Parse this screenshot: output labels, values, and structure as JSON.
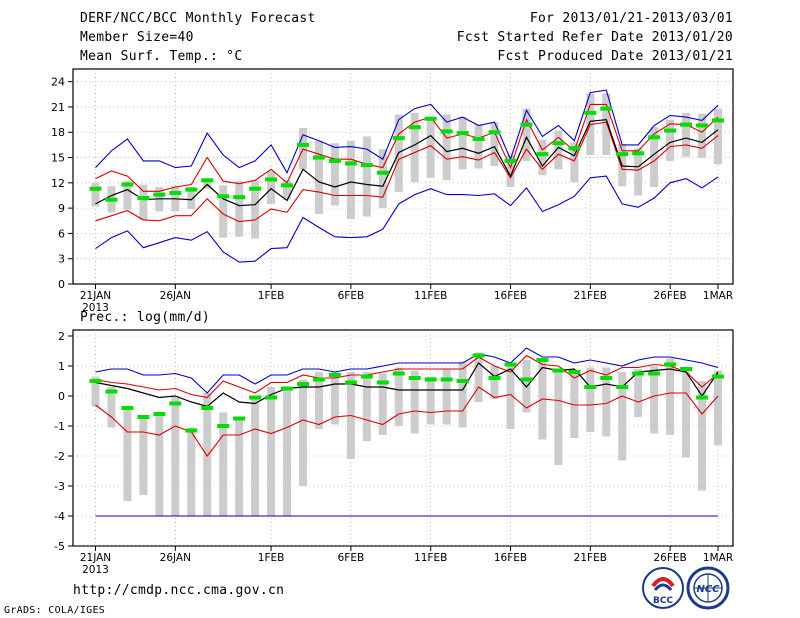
{
  "header": {
    "title": "DERF/NCC/BCC Monthly Forecast",
    "member_size": "Member Size=40",
    "variable": "Mean Surf. Temp.: °C",
    "period": "For 2013/01/21-2013/03/01",
    "fcst_started": "Fcst Started Refer Date 2013/01/20",
    "fcst_produced": "Fcst Produced Date 2013/01/21"
  },
  "footer": {
    "url": "http://cmdp.ncc.cma.gov.cn",
    "grads": "GrADS: COLA/IGES",
    "logo_bcc": "BCC",
    "logo_ncc": "NCC"
  },
  "colors": {
    "max": "#0000cc",
    "min": "#0000cc",
    "upper": "#dd0000",
    "lower": "#dd0000",
    "mean": "#000000",
    "median": "#00aa00",
    "obs": "#00dd00",
    "box": "#cccccc"
  },
  "chart_data": [
    {
      "type": "box-line",
      "title": "",
      "ylabel": "Mean Surf. Temp.: °C",
      "ylim": [
        0,
        25.5
      ],
      "yticks": [
        0,
        3,
        6,
        9,
        12,
        15,
        18,
        21,
        24
      ],
      "x": [
        1,
        2,
        3,
        4,
        5,
        6,
        7,
        8,
        9,
        10,
        11,
        12,
        13,
        14,
        15,
        16,
        17,
        18,
        19,
        20,
        21,
        22,
        23,
        24,
        25,
        26,
        27,
        28,
        29,
        30,
        31,
        32,
        33,
        34,
        35,
        36,
        37,
        38,
        39,
        40
      ],
      "xticks": [
        {
          "day": 1,
          "label": "21JAN"
        },
        {
          "day": 6,
          "label": "26JAN"
        },
        {
          "day": 12,
          "label": "1FEB"
        },
        {
          "day": 17,
          "label": "6FEB"
        },
        {
          "day": 22,
          "label": "11FEB"
        },
        {
          "day": 27,
          "label": "16FEB"
        },
        {
          "day": 32,
          "label": "21FEB"
        },
        {
          "day": 37,
          "label": "26FEB"
        },
        {
          "day": 40,
          "label": "1MAR"
        }
      ],
      "year_label": "2013",
      "series": [
        {
          "name": "max",
          "values": [
            13.8,
            15.8,
            17.2,
            14.6,
            14.6,
            13.8,
            14.0,
            17.9,
            15.3,
            13.8,
            14.6,
            16.5,
            13.2,
            17.7,
            17.0,
            16.2,
            16.3,
            16.0,
            14.8,
            19.5,
            20.8,
            21.3,
            19.2,
            19.8,
            18.8,
            19.2,
            14.8,
            20.6,
            17.5,
            18.8,
            17.0,
            22.7,
            23.0,
            16.5,
            16.5,
            18.8,
            20.0,
            19.8,
            19.4,
            21.2
          ]
        },
        {
          "name": "upper",
          "values": [
            12.5,
            13.4,
            12.8,
            11.0,
            11.0,
            11.5,
            11.8,
            15.0,
            12.2,
            11.9,
            12.3,
            13.6,
            12.0,
            16.0,
            15.4,
            14.8,
            14.8,
            14.2,
            13.8,
            17.8,
            19.2,
            19.8,
            17.3,
            17.8,
            17.3,
            18.0,
            13.8,
            19.5,
            15.9,
            17.4,
            15.8,
            21.3,
            21.3,
            15.8,
            15.8,
            17.8,
            19.0,
            18.9,
            18.0,
            19.8
          ]
        },
        {
          "name": "mean",
          "values": [
            9.5,
            10.5,
            11.2,
            10.0,
            10.1,
            10.1,
            10.0,
            11.8,
            10.1,
            9.3,
            9.4,
            11.3,
            9.9,
            13.6,
            12.1,
            11.5,
            12.1,
            11.8,
            11.6,
            15.6,
            16.5,
            17.6,
            15.7,
            16.1,
            15.5,
            16.3,
            12.8,
            17.4,
            14.0,
            16.2,
            15.2,
            19.3,
            19.5,
            14.0,
            13.9,
            15.4,
            16.8,
            17.3,
            16.8,
            18.3
          ]
        },
        {
          "name": "lower",
          "values": [
            7.5,
            8.1,
            8.7,
            7.6,
            7.5,
            8.1,
            8.1,
            10.1,
            8.3,
            7.4,
            7.6,
            8.9,
            8.5,
            11.2,
            10.9,
            10.5,
            10.5,
            10.5,
            10.3,
            14.8,
            15.6,
            16.4,
            14.8,
            15.1,
            14.7,
            15.6,
            12.6,
            16.0,
            13.6,
            15.4,
            14.6,
            18.9,
            19.2,
            13.6,
            13.5,
            14.6,
            16.3,
            16.5,
            16.1,
            17.6
          ]
        },
        {
          "name": "min",
          "values": [
            4.2,
            5.5,
            6.3,
            4.3,
            4.9,
            5.5,
            5.2,
            6.2,
            3.8,
            2.6,
            2.7,
            4.2,
            4.3,
            7.9,
            6.7,
            5.6,
            5.5,
            5.6,
            6.5,
            9.5,
            10.6,
            11.3,
            10.6,
            10.6,
            10.5,
            10.7,
            9.3,
            11.4,
            8.6,
            9.4,
            10.4,
            12.6,
            12.8,
            9.5,
            9.1,
            10.2,
            12.0,
            12.5,
            11.4,
            12.7
          ]
        },
        {
          "name": "median",
          "values": [
            11.3,
            10.0,
            11.8,
            10.2,
            10.6,
            10.8,
            11.2,
            12.3,
            10.4,
            10.3,
            11.3,
            12.4,
            11.7,
            16.5,
            15.0,
            14.6,
            14.3,
            14.1,
            13.2,
            17.3,
            18.6,
            19.6,
            18.1,
            17.9,
            17.2,
            18.0,
            14.6,
            18.9,
            15.4,
            16.7,
            16.1,
            20.3,
            20.8,
            15.4,
            15.5,
            17.4,
            18.2,
            18.9,
            18.8,
            19.4
          ]
        },
        {
          "name": "box_high",
          "values": [
            12.0,
            11.6,
            12.2,
            11.8,
            11.5,
            11.6,
            11.5,
            12.4,
            11.7,
            12.2,
            12.3,
            13.4,
            12.3,
            18.5,
            17.0,
            16.7,
            17.0,
            17.5,
            16.0,
            20.1,
            20.3,
            19.5,
            20.1,
            19.8,
            18.9,
            19.2,
            15.3,
            20.8,
            17.1,
            18.2,
            16.8,
            22.6,
            22.6,
            16.6,
            16.1,
            18.6,
            19.5,
            20.3,
            20.2,
            20.8
          ]
        },
        {
          "name": "box_low",
          "values": [
            9.2,
            8.5,
            8.8,
            7.6,
            8.6,
            8.6,
            8.9,
            11.3,
            5.5,
            5.6,
            5.4,
            9.5,
            10.0,
            13.6,
            8.3,
            9.3,
            7.7,
            8.0,
            9.0,
            10.9,
            12.1,
            12.6,
            12.3,
            13.6,
            13.7,
            14.0,
            11.5,
            14.6,
            12.9,
            13.6,
            12.1,
            15.3,
            15.3,
            11.6,
            10.5,
            11.5,
            14.6,
            15.1,
            15.0,
            14.2
          ]
        }
      ]
    },
    {
      "type": "box-line",
      "title": "",
      "ylabel": "Prec.: log(mm/d)",
      "ylim": [
        -5,
        2.2
      ],
      "yticks": [
        -5,
        -4,
        -3,
        -2,
        -1,
        0,
        1,
        2
      ],
      "x": [
        1,
        2,
        3,
        4,
        5,
        6,
        7,
        8,
        9,
        10,
        11,
        12,
        13,
        14,
        15,
        16,
        17,
        18,
        19,
        20,
        21,
        22,
        23,
        24,
        25,
        26,
        27,
        28,
        29,
        30,
        31,
        32,
        33,
        34,
        35,
        36,
        37,
        38,
        39,
        40
      ],
      "xticks": [
        {
          "day": 1,
          "label": "21JAN"
        },
        {
          "day": 6,
          "label": "26JAN"
        },
        {
          "day": 12,
          "label": "1FEB"
        },
        {
          "day": 17,
          "label": "6FEB"
        },
        {
          "day": 22,
          "label": "11FEB"
        },
        {
          "day": 27,
          "label": "16FEB"
        },
        {
          "day": 32,
          "label": "21FEB"
        },
        {
          "day": 37,
          "label": "26FEB"
        },
        {
          "day": 40,
          "label": "1MAR"
        }
      ],
      "year_label": "2013",
      "series": [
        {
          "name": "max",
          "values": [
            0.8,
            0.9,
            0.9,
            0.7,
            0.7,
            0.75,
            0.6,
            0.1,
            0.7,
            0.7,
            0.4,
            0.7,
            0.7,
            0.9,
            0.9,
            0.8,
            0.9,
            0.9,
            1.0,
            1.1,
            1.1,
            1.1,
            1.1,
            1.1,
            1.4,
            1.3,
            1.1,
            1.6,
            1.3,
            1.3,
            1.1,
            1.2,
            1.1,
            1.0,
            1.2,
            1.3,
            1.3,
            1.2,
            1.1,
            0.95
          ]
        },
        {
          "name": "upper",
          "values": [
            0.55,
            0.45,
            0.4,
            0.3,
            0.2,
            0.25,
            0.05,
            -0.05,
            0.5,
            0.3,
            0.1,
            0.45,
            0.45,
            0.7,
            0.6,
            0.6,
            0.7,
            0.7,
            0.8,
            0.9,
            0.9,
            0.9,
            0.9,
            0.9,
            1.3,
            1.0,
            0.8,
            1.35,
            1.05,
            1.0,
            0.6,
            0.85,
            0.7,
            0.95,
            0.95,
            1.05,
            1.0,
            0.8,
            0.3,
            0.75
          ]
        },
        {
          "name": "mean",
          "values": [
            0.45,
            0.35,
            0.25,
            0.1,
            -0.05,
            0.0,
            -0.2,
            -0.35,
            0.1,
            -0.2,
            -0.25,
            0.05,
            0.25,
            0.3,
            0.3,
            0.4,
            0.4,
            0.3,
            0.3,
            0.2,
            0.2,
            0.2,
            0.2,
            0.2,
            1.1,
            0.65,
            0.9,
            0.3,
            0.95,
            0.85,
            0.9,
            0.3,
            0.4,
            0.3,
            0.8,
            0.85,
            0.9,
            0.8,
            0.0,
            0.8
          ]
        },
        {
          "name": "lower",
          "values": [
            -0.3,
            -0.7,
            -1.2,
            -1.2,
            -1.3,
            -1.0,
            -1.2,
            -2.0,
            -1.3,
            -1.3,
            -1.1,
            -1.25,
            -1.05,
            -0.8,
            -0.95,
            -0.7,
            -0.65,
            -0.8,
            -0.95,
            -0.6,
            -0.5,
            -0.55,
            -0.5,
            -0.5,
            0.3,
            -0.05,
            0.05,
            -0.4,
            -0.1,
            -0.15,
            -0.3,
            -0.3,
            -0.25,
            0.0,
            -0.2,
            0.0,
            0.1,
            0.1,
            -0.6,
            0.0
          ]
        },
        {
          "name": "min",
          "values": [
            -4,
            -4,
            -4,
            -4,
            -4,
            -4,
            -4,
            -4,
            -4,
            -4,
            -4,
            -4,
            -4,
            -4,
            -4,
            -4,
            -4,
            -4,
            -4,
            -4,
            -4,
            -4,
            -4,
            -4,
            -4,
            -4,
            -4,
            -4,
            -4,
            -4,
            -4,
            -4,
            -4,
            -4,
            -4,
            -4,
            -4,
            -4,
            -4,
            -4
          ]
        },
        {
          "name": "median",
          "values": [
            0.5,
            0.15,
            -0.4,
            -0.7,
            -0.6,
            -0.25,
            -1.15,
            -0.4,
            -1.0,
            -0.75,
            -0.05,
            -0.05,
            0.25,
            0.4,
            0.55,
            0.7,
            0.45,
            0.65,
            0.45,
            0.75,
            0.6,
            0.55,
            0.55,
            0.5,
            1.35,
            0.6,
            1.05,
            0.55,
            1.2,
            0.85,
            0.8,
            0.3,
            0.6,
            0.3,
            0.75,
            0.75,
            1.05,
            0.9,
            -0.05,
            0.65
          ]
        },
        {
          "name": "box_high",
          "values": [
            0.65,
            0.3,
            -0.4,
            -0.65,
            -0.6,
            0.0,
            -1.05,
            0.1,
            -0.55,
            -0.7,
            0.0,
            0.3,
            0.3,
            0.55,
            0.8,
            0.8,
            0.8,
            0.8,
            0.75,
            0.95,
            0.85,
            0.65,
            0.9,
            1.15,
            1.45,
            1.0,
            1.05,
            1.2,
            1.25,
            0.85,
            0.8,
            0.95,
            0.95,
            0.8,
            0.9,
            1.0,
            1.25,
            0.95,
            0.5,
            0.85
          ]
        },
        {
          "name": "box_low",
          "values": [
            -0.35,
            -1.05,
            -3.5,
            -3.3,
            -4.0,
            -4.0,
            -4.0,
            -4.0,
            -4.0,
            -4.0,
            -4.0,
            -4.0,
            -4.0,
            -3.0,
            -1.1,
            -0.95,
            -2.1,
            -1.5,
            -1.3,
            -1.0,
            -1.25,
            -0.95,
            -0.95,
            -1.05,
            -0.2,
            -0.1,
            -1.1,
            -0.55,
            -1.45,
            -2.3,
            -1.4,
            -1.2,
            -1.35,
            -2.15,
            -0.7,
            -1.25,
            -1.3,
            -2.05,
            -3.15,
            -1.65
          ]
        }
      ]
    }
  ]
}
